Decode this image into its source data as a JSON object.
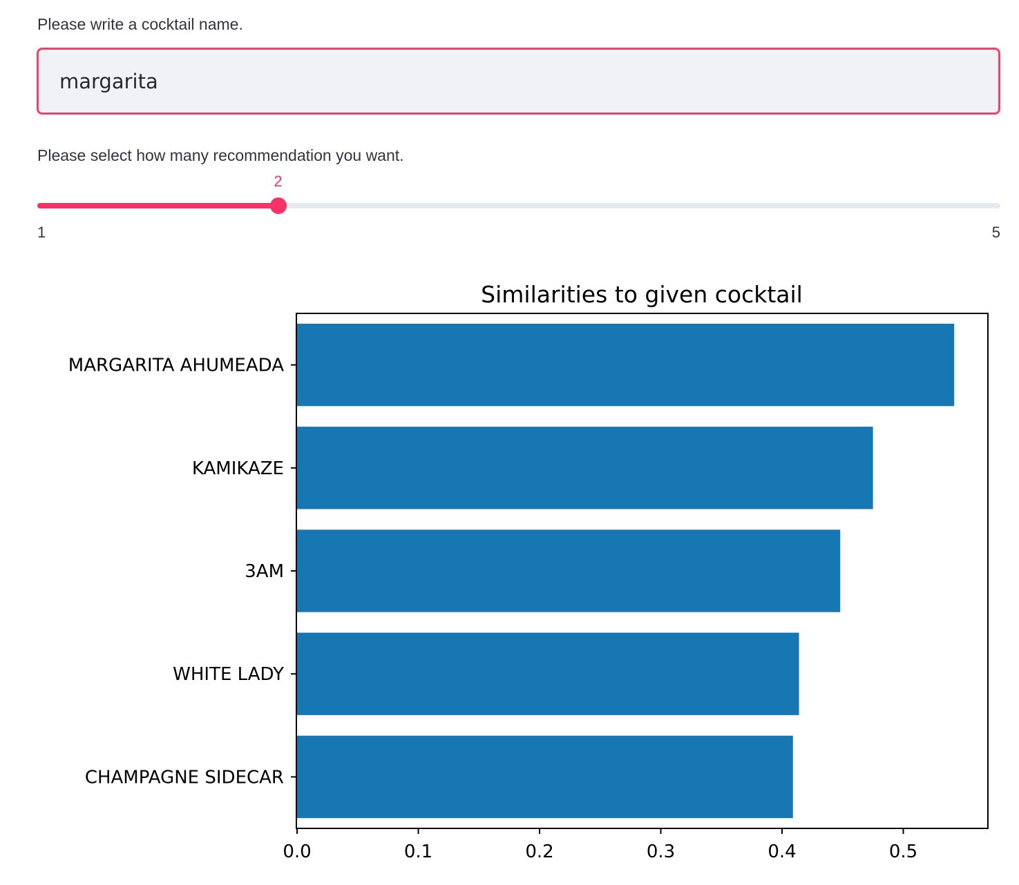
{
  "input": {
    "label": "Please write a cocktail name.",
    "value": "margarita"
  },
  "slider": {
    "label": "Please select how many recommendation you want.",
    "value": 2,
    "min": 1,
    "max": 5,
    "value_label": "2",
    "min_label": "1",
    "max_label": "5",
    "accent_color": "#f63366"
  },
  "chart_data": {
    "type": "bar",
    "orientation": "horizontal",
    "title": "Similarities to given cocktail",
    "xlabel": "",
    "ylabel": "",
    "categories": [
      "MARGARITA AHUMEADA",
      "KAMIKAZE",
      "3AM",
      "WHITE LADY",
      "CHAMPAGNE SIDECAR"
    ],
    "values": [
      0.542,
      0.475,
      0.448,
      0.414,
      0.409
    ],
    "xlim": [
      0,
      0.57
    ],
    "xticks": [
      0.0,
      0.1,
      0.2,
      0.3,
      0.4,
      0.5
    ],
    "xtick_labels": [
      "0.0",
      "0.1",
      "0.2",
      "0.3",
      "0.4",
      "0.5"
    ],
    "bar_color": "#1677b3",
    "grid": false
  }
}
